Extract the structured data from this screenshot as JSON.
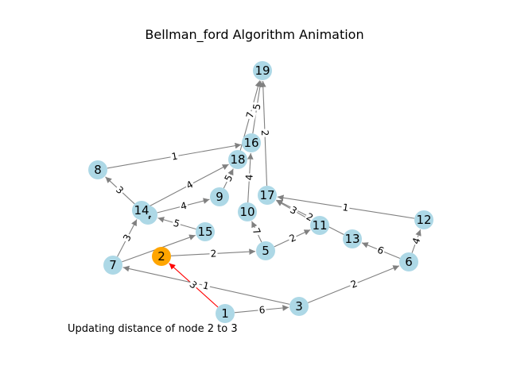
{
  "title": "Bellman_ford Algorithm Animation",
  "status": "Updating distance of node 2 to 3",
  "colors": {
    "node": "#add8e6",
    "highlight_node": "#ffa500",
    "edge": "#808080",
    "active_edge": "#ff0000"
  },
  "graph": {
    "highlight_node": "2",
    "nodes": [
      "1",
      "2",
      "3",
      "4",
      "5",
      "6",
      "7",
      "8",
      "9",
      "10",
      "11",
      "12",
      "13",
      "14",
      "15",
      "16",
      "17",
      "18",
      "19"
    ],
    "edges": [
      {
        "from": "1",
        "to": "2",
        "w": "3",
        "active": true
      },
      {
        "from": "1",
        "to": "3",
        "w": "6"
      },
      {
        "from": "3",
        "to": "7",
        "w": "1"
      },
      {
        "from": "3",
        "to": "6",
        "w": "2"
      },
      {
        "from": "2",
        "to": "5",
        "w": "2"
      },
      {
        "from": "6",
        "to": "13",
        "w": "6"
      },
      {
        "from": "6",
        "to": "12",
        "w": "4"
      },
      {
        "from": "12",
        "to": "17",
        "w": "1"
      },
      {
        "from": "5",
        "to": "11",
        "w": "2"
      },
      {
        "from": "11",
        "to": "17",
        "w": "3"
      },
      {
        "from": "13",
        "to": "17",
        "w": "2"
      },
      {
        "from": "5",
        "to": "10",
        "w": "7"
      },
      {
        "from": "10",
        "to": "16",
        "w": "4"
      },
      {
        "from": "17",
        "to": "19",
        "w": "2"
      },
      {
        "from": "16",
        "to": "19",
        "w": "5"
      },
      {
        "from": "18",
        "to": "19",
        "w": "7"
      },
      {
        "from": "9",
        "to": "18",
        "w": "5"
      },
      {
        "from": "4",
        "to": "9",
        "w": "4"
      },
      {
        "from": "14",
        "to": "18",
        "w": "4"
      },
      {
        "from": "8",
        "to": "16",
        "w": "1"
      },
      {
        "from": "14",
        "to": "8",
        "w": "3"
      },
      {
        "from": "7",
        "to": "14",
        "w": "3"
      },
      {
        "from": "15",
        "to": "4",
        "w": "5"
      },
      {
        "from": "7",
        "to": "15",
        "w": ""
      }
    ]
  }
}
